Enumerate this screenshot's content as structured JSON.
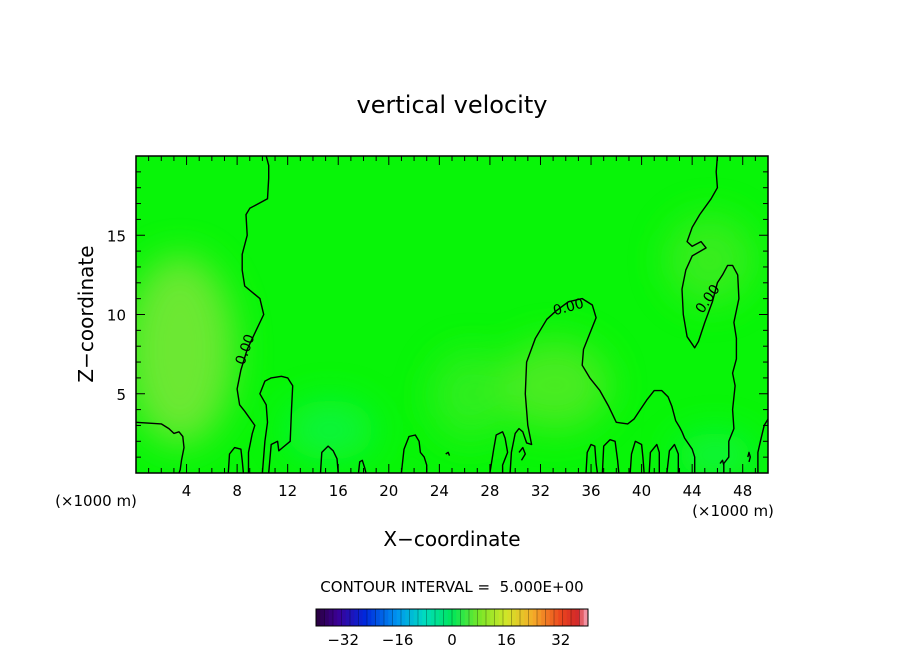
{
  "chart_data": {
    "type": "heatmap",
    "title": "vertical velocity",
    "xlabel": "X−coordinate",
    "ylabel": "Z−coordinate",
    "x_unit_left": "(×1000 m)",
    "x_unit_right": "(×1000 m)",
    "xlim": [
      0,
      50
    ],
    "ylim": [
      0,
      20
    ],
    "x_ticks": [
      4,
      8,
      12,
      16,
      20,
      24,
      28,
      32,
      36,
      40,
      44,
      48
    ],
    "x_tick_labels": [
      "4",
      "8",
      "12",
      "16",
      "20",
      "24",
      "28",
      "32",
      "36",
      "40",
      "44",
      "48"
    ],
    "y_ticks": [
      5,
      10,
      15
    ],
    "y_tick_labels": [
      "5",
      "10",
      "15"
    ],
    "contour_interval_text": "CONTOUR INTERVAL =  5.000E+00",
    "contour_interval": 5.0,
    "contour_labels": [
      {
        "text": "0.00",
        "x": 8.6,
        "y": 7.8,
        "angle": -70
      },
      {
        "text": "0.00",
        "x": 34.2,
        "y": 10.5,
        "angle": -15
      },
      {
        "text": "0.00",
        "x": 45.2,
        "y": 11.0,
        "angle": -55
      }
    ],
    "colorbar": {
      "min": -40,
      "max": 40,
      "ticks": [
        -32,
        -16,
        0,
        16,
        32
      ],
      "tick_labels": [
        "−32",
        "−16",
        "0",
        "16",
        "32"
      ]
    },
    "zero_contours": [
      [
        [
          0,
          3.2
        ],
        [
          2,
          3.1
        ],
        [
          2.6,
          2.8
        ],
        [
          3,
          2.5
        ],
        [
          3.4,
          2.6
        ],
        [
          3.7,
          2.3
        ],
        [
          3.8,
          1.6
        ],
        [
          3.6,
          0.8
        ],
        [
          3.5,
          0.2
        ],
        [
          3.4,
          0
        ]
      ],
      [
        [
          7.3,
          0
        ],
        [
          7.4,
          1.2
        ],
        [
          7.8,
          1.6
        ],
        [
          8.3,
          1.5
        ],
        [
          8.4,
          0.8
        ],
        [
          8.5,
          0
        ]
      ],
      [
        [
          8.9,
          0
        ],
        [
          8.9,
          1.3
        ],
        [
          9.2,
          2.5
        ],
        [
          9.4,
          3.0
        ],
        [
          8.6,
          3.9
        ],
        [
          8.2,
          4.3
        ],
        [
          8.0,
          5.3
        ],
        [
          8.3,
          6.5
        ],
        [
          8.8,
          7.8
        ],
        [
          9.5,
          9.0
        ],
        [
          10.1,
          10.0
        ],
        [
          9.8,
          11.0
        ],
        [
          8.6,
          11.8
        ],
        [
          8.4,
          12.8
        ],
        [
          8.4,
          13.8
        ],
        [
          8.8,
          15.0
        ],
        [
          8.7,
          16.3
        ],
        [
          9.0,
          16.7
        ],
        [
          10.4,
          17.3
        ],
        [
          10.5,
          18.6
        ],
        [
          10.5,
          19.4
        ],
        [
          10.3,
          20.0
        ]
      ],
      [
        [
          10.5,
          0
        ],
        [
          10.7,
          1.8
        ],
        [
          11.2,
          2.0
        ],
        [
          11.3,
          1.4
        ],
        [
          11.6,
          1.6
        ],
        [
          12.2,
          2.0
        ],
        [
          12.3,
          4.0
        ],
        [
          12.4,
          5.5
        ],
        [
          12.0,
          6.0
        ],
        [
          11.5,
          6.1
        ],
        [
          10.7,
          6.0
        ],
        [
          10.2,
          5.8
        ],
        [
          9.8,
          5.0
        ],
        [
          10.3,
          4.3
        ],
        [
          10.4,
          3.2
        ],
        [
          10.2,
          2.0
        ],
        [
          10.0,
          0
        ]
      ],
      [
        [
          14.6,
          0
        ],
        [
          14.7,
          1.3
        ],
        [
          15.2,
          1.7
        ],
        [
          15.6,
          1.4
        ],
        [
          15.9,
          0.9
        ],
        [
          16.0,
          0
        ]
      ],
      [
        [
          17.6,
          0
        ],
        [
          17.7,
          0.7
        ],
        [
          17.9,
          0.8
        ],
        [
          18.1,
          0.3
        ],
        [
          18.2,
          0
        ]
      ],
      [
        [
          21.0,
          0
        ],
        [
          21.2,
          1.5
        ],
        [
          21.6,
          2.3
        ],
        [
          22.1,
          2.4
        ],
        [
          22.4,
          2.0
        ],
        [
          22.5,
          1.3
        ],
        [
          22.8,
          1.0
        ],
        [
          23.0,
          0.5
        ],
        [
          23.0,
          0
        ]
      ],
      [
        [
          24.5,
          1.2
        ],
        [
          24.7,
          1.3
        ],
        [
          24.8,
          1.1
        ]
      ],
      [
        [
          28.0,
          0
        ],
        [
          28.3,
          1.5
        ],
        [
          28.5,
          2.4
        ],
        [
          29.0,
          2.6
        ],
        [
          29.2,
          2.2
        ],
        [
          29.4,
          1.3
        ],
        [
          29.0,
          0.5
        ],
        [
          29.0,
          0
        ]
      ],
      [
        [
          29.6,
          0
        ],
        [
          29.7,
          1.3
        ],
        [
          30.0,
          2.5
        ],
        [
          30.3,
          2.8
        ],
        [
          30.6,
          2.6
        ],
        [
          30.9,
          1.9
        ],
        [
          31.3,
          1.8
        ],
        [
          31.0,
          3.0
        ],
        [
          30.8,
          5.0
        ],
        [
          30.9,
          7.0
        ],
        [
          31.6,
          8.5
        ],
        [
          32.5,
          9.7
        ],
        [
          33.2,
          10.2
        ],
        [
          34.2,
          10.8
        ],
        [
          35.3,
          11.0
        ],
        [
          36.1,
          10.6
        ],
        [
          36.4,
          9.8
        ],
        [
          35.9,
          8.8
        ],
        [
          35.4,
          7.8
        ],
        [
          35.3,
          6.8
        ],
        [
          35.9,
          6.0
        ],
        [
          36.7,
          5.2
        ],
        [
          37.4,
          4.2
        ],
        [
          38.0,
          3.2
        ],
        [
          38.9,
          3.1
        ],
        [
          39.4,
          3.4
        ],
        [
          39.9,
          4.0
        ],
        [
          40.4,
          4.6
        ],
        [
          41.0,
          5.2
        ],
        [
          41.6,
          5.2
        ],
        [
          42.1,
          4.8
        ],
        [
          42.4,
          4.2
        ],
        [
          42.7,
          3.3
        ],
        [
          43.0,
          2.9
        ],
        [
          43.2,
          2.6
        ],
        [
          43.4,
          2.2
        ],
        [
          44.0,
          1.5
        ],
        [
          44.2,
          1.0
        ],
        [
          44.2,
          0
        ]
      ],
      [
        [
          30.3,
          1.3
        ],
        [
          30.6,
          1.6
        ],
        [
          30.8,
          1.2
        ],
        [
          30.5,
          0.8
        ]
      ],
      [
        [
          35.6,
          0
        ],
        [
          35.7,
          1.3
        ],
        [
          36.0,
          1.8
        ],
        [
          36.3,
          1.7
        ],
        [
          36.4,
          0.6
        ],
        [
          36.5,
          0
        ]
      ],
      [
        [
          36.9,
          0
        ],
        [
          37.0,
          1.7
        ],
        [
          37.5,
          2.1
        ],
        [
          37.9,
          2.0
        ],
        [
          38.1,
          0.8
        ],
        [
          38.2,
          0
        ]
      ],
      [
        [
          39.1,
          0
        ],
        [
          39.2,
          1.2
        ],
        [
          39.5,
          2.0
        ],
        [
          40.0,
          1.8
        ],
        [
          40.1,
          1.0
        ],
        [
          40.2,
          0
        ]
      ],
      [
        [
          40.6,
          0
        ],
        [
          40.7,
          1.3
        ],
        [
          41.2,
          1.8
        ],
        [
          41.4,
          1.3
        ],
        [
          41.4,
          0
        ]
      ],
      [
        [
          42.0,
          0
        ],
        [
          42.2,
          1.4
        ],
        [
          42.6,
          1.8
        ],
        [
          42.9,
          1.2
        ],
        [
          42.9,
          0
        ]
      ],
      [
        [
          49.2,
          0
        ],
        [
          49.2,
          1.3
        ],
        [
          49.4,
          2.0
        ],
        [
          49.7,
          3.0
        ],
        [
          50,
          3.4
        ]
      ],
      [
        [
          46.0,
          20.0
        ],
        [
          45.9,
          19.0
        ],
        [
          46.0,
          18.0
        ],
        [
          45.5,
          17.3
        ],
        [
          44.6,
          16.3
        ],
        [
          44.0,
          15.5
        ],
        [
          43.6,
          14.6
        ],
        [
          44.0,
          14.3
        ],
        [
          44.7,
          14.6
        ],
        [
          45.1,
          14.2
        ],
        [
          44.0,
          13.7
        ],
        [
          43.5,
          12.8
        ],
        [
          43.2,
          11.6
        ],
        [
          43.3,
          10.0
        ],
        [
          43.6,
          8.6
        ],
        [
          44.2,
          7.9
        ],
        [
          44.5,
          8.3
        ],
        [
          45.0,
          9.5
        ],
        [
          45.6,
          10.8
        ],
        [
          46.0,
          12.0
        ],
        [
          46.4,
          12.5
        ],
        [
          46.8,
          13.1
        ],
        [
          47.2,
          13.1
        ],
        [
          47.6,
          12.5
        ],
        [
          47.7,
          11.0
        ],
        [
          47.3,
          9.5
        ],
        [
          47.5,
          8.5
        ],
        [
          47.5,
          7.2
        ],
        [
          47.2,
          6.3
        ],
        [
          47.4,
          5.5
        ],
        [
          47.2,
          4.0
        ],
        [
          47.3,
          2.8
        ],
        [
          46.9,
          2.0
        ],
        [
          46.9,
          1.0
        ],
        [
          46.5,
          0.6
        ],
        [
          46.5,
          0
        ]
      ],
      [
        [
          46.2,
          0.6
        ],
        [
          46.4,
          0.8
        ],
        [
          46.5,
          0.5
        ]
      ],
      [
        [
          48.4,
          1.0
        ],
        [
          48.5,
          1.3
        ],
        [
          48.6,
          1.0
        ],
        [
          48.5,
          0.7
        ]
      ]
    ]
  }
}
